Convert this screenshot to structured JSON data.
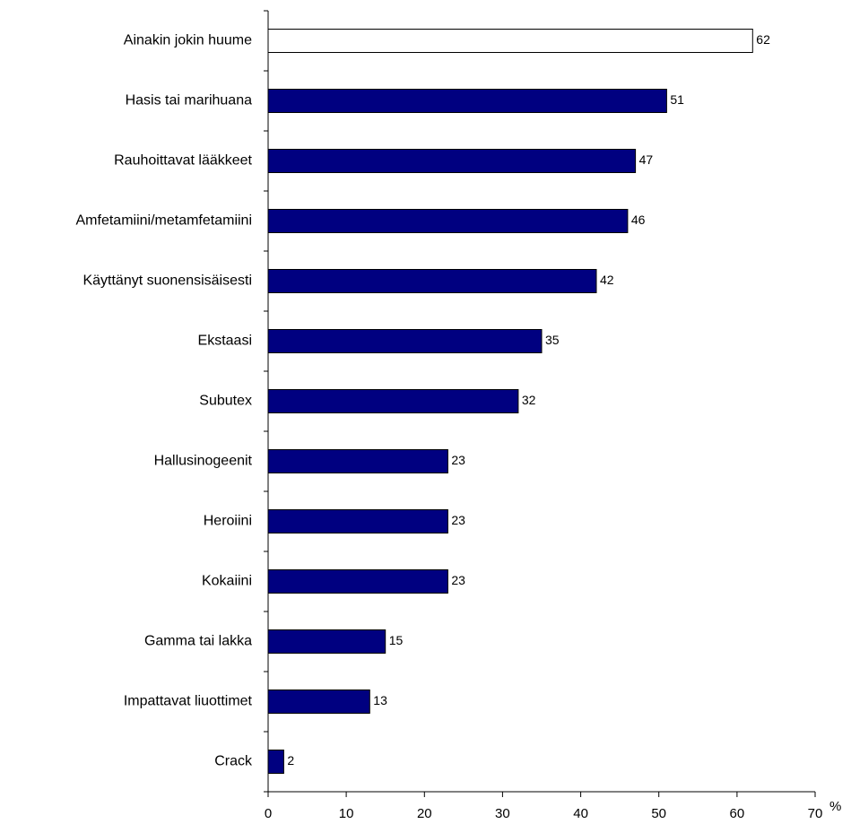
{
  "chart_data": {
    "type": "bar",
    "orientation": "horizontal",
    "categories": [
      "Ainakin jokin huume",
      "Hasis tai marihuana",
      "Rauhoittavat lääkkeet",
      "Amfetamiini/metamfetamiini",
      "Käyttänyt suonensisäisesti",
      "Ekstaasi",
      "Subutex",
      "Hallusinogeenit",
      "Heroiini",
      "Kokaiini",
      "Gamma tai lakka",
      "Impattavat liuottimet",
      "Crack"
    ],
    "values": [
      62,
      51,
      47,
      46,
      42,
      35,
      32,
      23,
      23,
      23,
      15,
      13,
      2
    ],
    "highlight_first": true,
    "xlim": [
      0,
      70
    ],
    "xticks": [
      "0",
      "10",
      "20",
      "30",
      "40",
      "50",
      "60",
      "70"
    ],
    "xunit": "%",
    "grid": false,
    "colors": {
      "bar": "#000080",
      "highlight_bar": "#ffffff",
      "outline": "#000000"
    }
  }
}
